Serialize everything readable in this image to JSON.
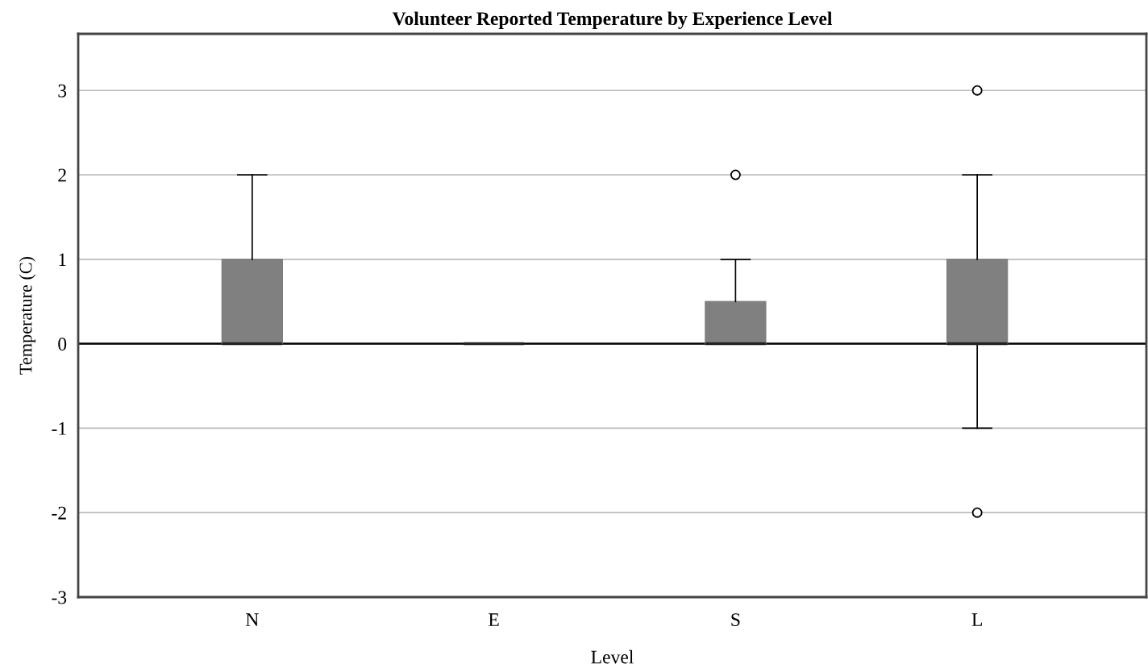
{
  "chart_data": {
    "type": "box",
    "title": "Volunteer Reported Temperature by Experience Level",
    "xlabel": "Level",
    "ylabel": "Temperature (C)",
    "categories": [
      "N",
      "E",
      "S",
      "L"
    ],
    "boxes": [
      {
        "low": 0,
        "q1": 0,
        "median": 0,
        "q3": 1,
        "high": 2
      },
      {
        "low": 0,
        "q1": 0,
        "median": 0,
        "q3": 0,
        "high": 0
      },
      {
        "low": 0,
        "q1": 0,
        "median": 0,
        "q3": 0.5,
        "high": 1,
        "outliers": [
          2
        ]
      },
      {
        "low": -1,
        "q1": 0,
        "median": 0,
        "q3": 1,
        "high": 2,
        "outliers": [
          3,
          -2
        ]
      }
    ],
    "color": "#808080",
    "ylim": [
      -3,
      3.67
    ],
    "yticks": [
      -3,
      -2,
      -1,
      0,
      1,
      2,
      3
    ],
    "grid": "y",
    "ref_lines": [
      {
        "axis": "y",
        "value": 0,
        "color": "#000000"
      }
    ]
  }
}
